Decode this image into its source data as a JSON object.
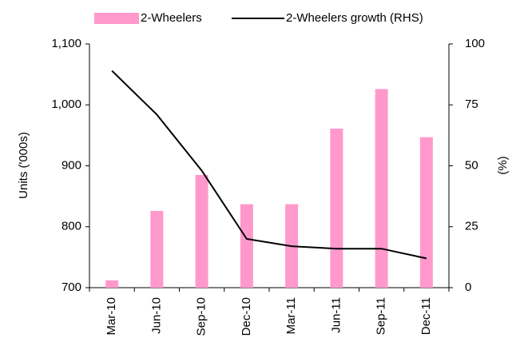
{
  "chart_data": {
    "type": "bar-line",
    "categories": [
      "Mar-10",
      "Jun-10",
      "Sep-10",
      "Dec-10",
      "Mar-11",
      "Jun-11",
      "Sep-11",
      "Dec-11"
    ],
    "series": [
      {
        "name": "2-Wheelers",
        "color": "#ff99cc",
        "type": "bar",
        "values": [
          712,
          826,
          885,
          837,
          837,
          961,
          1026,
          947
        ]
      },
      {
        "name": "2-Wheelers growth (RHS)",
        "color": "#000000",
        "type": "line",
        "axis": "y2",
        "values": [
          89,
          71,
          48,
          20,
          17,
          16,
          16,
          12
        ]
      }
    ],
    "ylabel": "Units ('000s)",
    "y2label": "(%)",
    "ylim": [
      700,
      1100
    ],
    "yticks": [
      700,
      800,
      900,
      {
        "value": 1000,
        "label": "1,000"
      },
      {
        "value": 1100,
        "label": "1,100"
      }
    ],
    "y2lim": [
      0,
      100
    ],
    "y2ticks": [
      0,
      25,
      50,
      75,
      100
    ],
    "legend": "top"
  }
}
